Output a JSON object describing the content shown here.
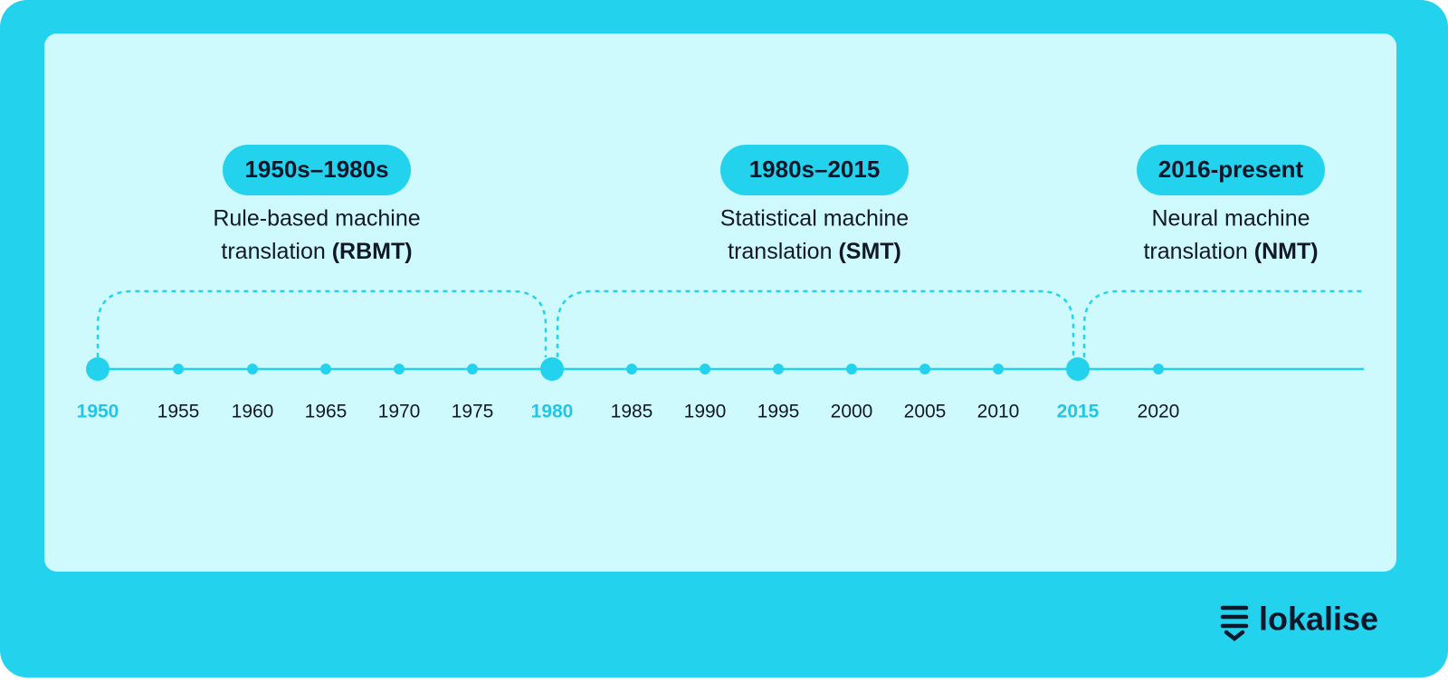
{
  "eras": [
    {
      "period": "1950s–1980s",
      "line1": "Rule-based machine",
      "line2": "translation",
      "abbreviation": "(RBMT)"
    },
    {
      "period": "1980s–2015",
      "line1": "Statistical machine",
      "line2": "translation",
      "abbreviation": "(SMT)"
    },
    {
      "period": "2016-present",
      "line1": "Neural machine",
      "line2": "translation",
      "abbreviation": "(NMT)"
    }
  ],
  "timeline": {
    "ticks": [
      {
        "label": "1950",
        "major": true
      },
      {
        "label": "1955",
        "major": false
      },
      {
        "label": "1960",
        "major": false
      },
      {
        "label": "1965",
        "major": false
      },
      {
        "label": "1970",
        "major": false
      },
      {
        "label": "1975",
        "major": false
      },
      {
        "label": "1980",
        "major": true
      },
      {
        "label": "1985",
        "major": false
      },
      {
        "label": "1990",
        "major": false
      },
      {
        "label": "1995",
        "major": false
      },
      {
        "label": "2000",
        "major": false
      },
      {
        "label": "2005",
        "major": false
      },
      {
        "label": "2010",
        "major": false
      },
      {
        "label": "2015",
        "major": true
      },
      {
        "label": "2020",
        "major": false
      }
    ]
  },
  "brand": "lokalise"
}
